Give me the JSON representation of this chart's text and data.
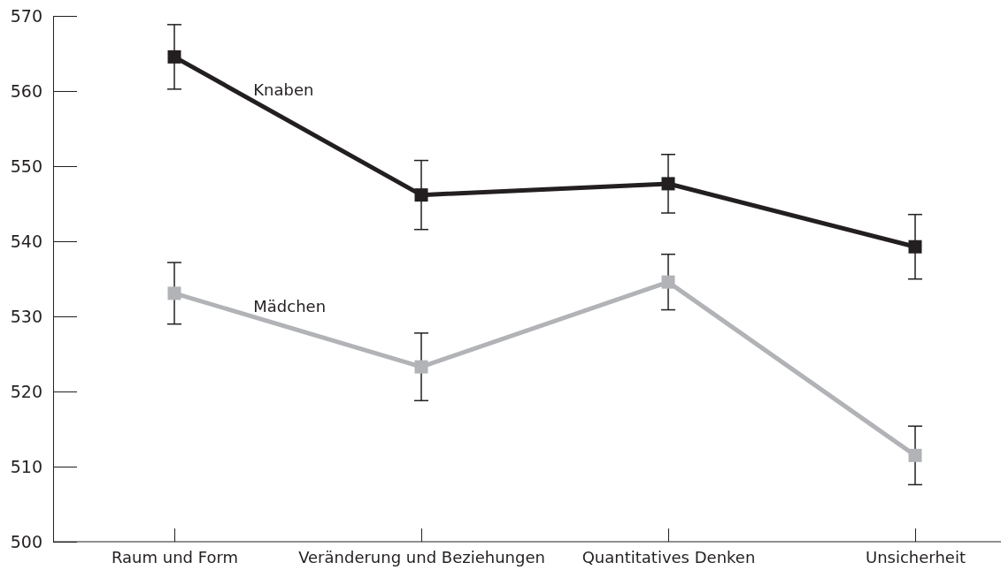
{
  "chart_data": {
    "type": "line",
    "categories": [
      "Raum und Form",
      "Veränderung und Beziehungen",
      "Quantitatives Denken",
      "Unsicherheit"
    ],
    "series": [
      {
        "name": "Knaben",
        "color": "#231f20",
        "values": [
          564.6,
          546.2,
          547.7,
          539.3
        ],
        "errors": [
          4.3,
          4.6,
          3.9,
          4.3
        ]
      },
      {
        "name": "Mädchen",
        "color": "#b1b3b6",
        "values": [
          533.1,
          523.3,
          534.6,
          511.5
        ],
        "errors": [
          4.1,
          4.5,
          3.7,
          3.9
        ]
      }
    ],
    "ylim": [
      500,
      570
    ],
    "yticks": [
      500,
      510,
      520,
      530,
      540,
      550,
      560,
      570
    ],
    "marker": "square",
    "line_style": "solid"
  }
}
